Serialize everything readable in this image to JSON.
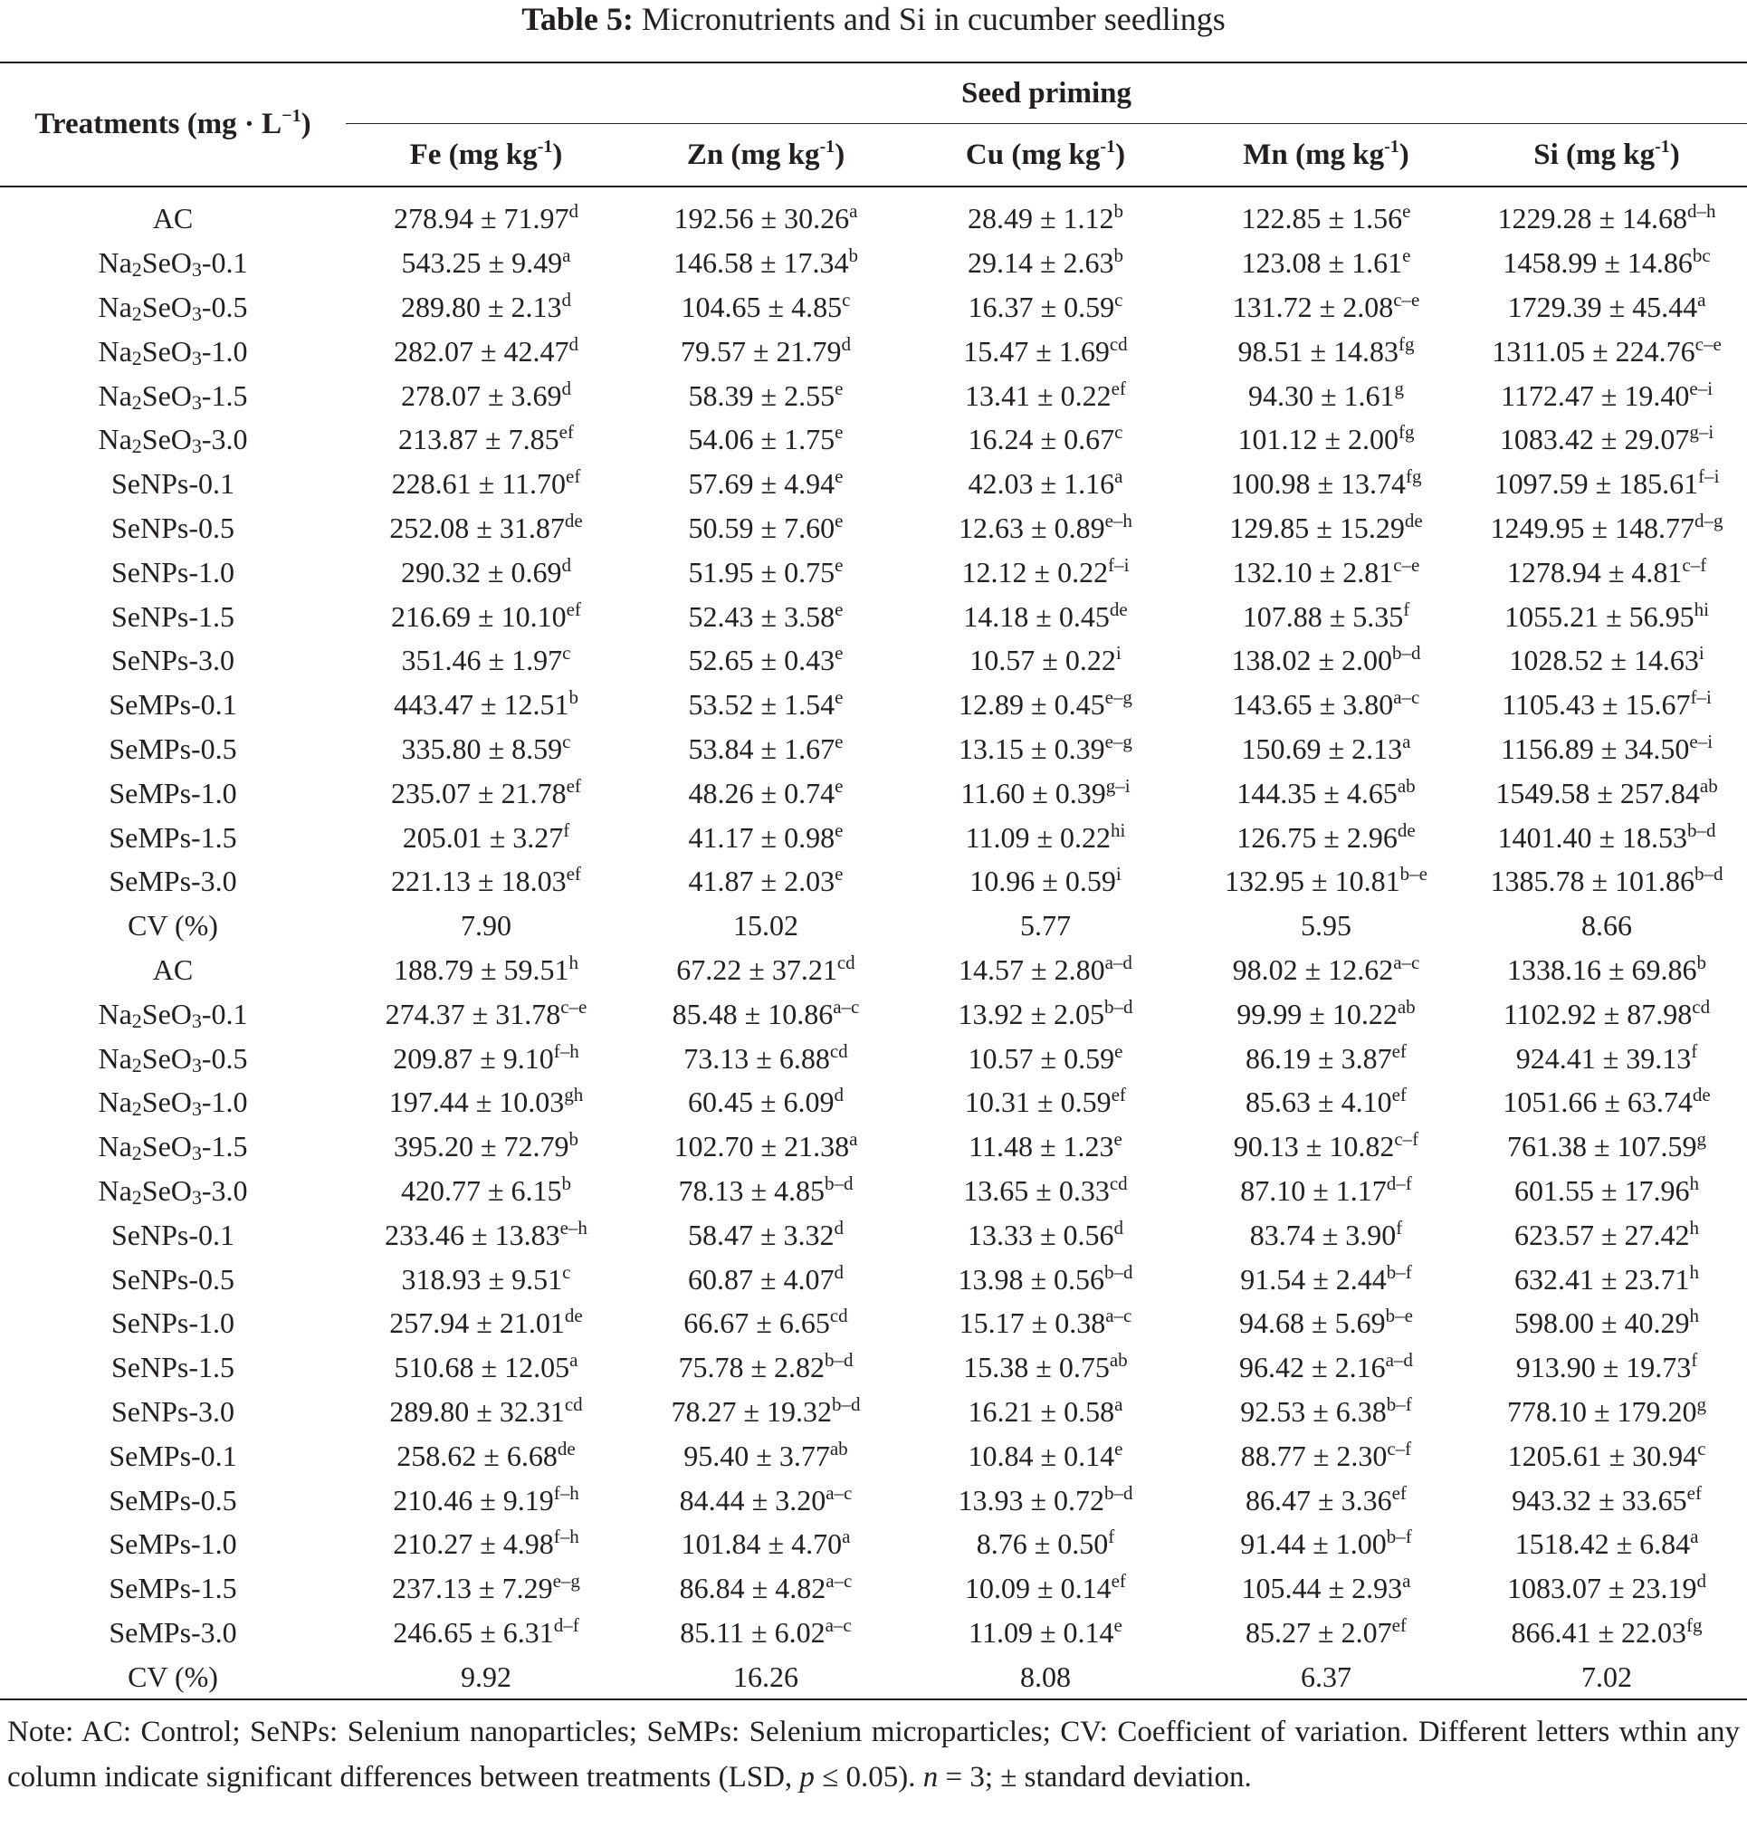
{
  "caption": {
    "label": "Table 5:",
    "text": "Micronutrients and Si in cucumber seedlings"
  },
  "header": {
    "treatments": "Treatments (mg · L",
    "treatments_exp": "−1",
    "treatments_close": ")",
    "group": "Seed priming",
    "columns": [
      {
        "name": "Fe (mg kg",
        "exp": "-1",
        "close": ")"
      },
      {
        "name": "Zn (mg kg",
        "exp": "-1",
        "close": ")"
      },
      {
        "name": "Cu (mg kg",
        "exp": "-1",
        "close": ")"
      },
      {
        "name": "Mn (mg kg",
        "exp": "-1",
        "close": ")"
      },
      {
        "name": "Si (mg kg",
        "exp": "-1",
        "close": ")"
      }
    ]
  },
  "rows": [
    {
      "t": "AC",
      "c": [
        [
          "278.94 ± 71.97",
          "d"
        ],
        [
          "192.56 ± 30.26",
          "a"
        ],
        [
          "28.49 ± 1.12",
          "b"
        ],
        [
          "122.85 ± 1.56",
          "e"
        ],
        [
          "1229.28 ± 14.68",
          "d–h"
        ]
      ]
    },
    {
      "t": "Na2SeO3-0.1",
      "c": [
        [
          "543.25 ± 9.49",
          "a"
        ],
        [
          "146.58 ± 17.34",
          "b"
        ],
        [
          "29.14 ± 2.63",
          "b"
        ],
        [
          "123.08 ± 1.61",
          "e"
        ],
        [
          "1458.99 ± 14.86",
          "bc"
        ]
      ]
    },
    {
      "t": "Na2SeO3-0.5",
      "c": [
        [
          "289.80 ± 2.13",
          "d"
        ],
        [
          "104.65 ± 4.85",
          "c"
        ],
        [
          "16.37 ± 0.59",
          "c"
        ],
        [
          "131.72 ± 2.08",
          "c–e"
        ],
        [
          "1729.39 ± 45.44",
          "a"
        ]
      ]
    },
    {
      "t": "Na2SeO3-1.0",
      "c": [
        [
          "282.07 ± 42.47",
          "d"
        ],
        [
          "79.57 ± 21.79",
          "d"
        ],
        [
          "15.47 ± 1.69",
          "cd"
        ],
        [
          "98.51 ± 14.83",
          "fg"
        ],
        [
          "1311.05 ± 224.76",
          "c–e"
        ]
      ]
    },
    {
      "t": "Na2SeO3-1.5",
      "c": [
        [
          "278.07 ± 3.69",
          "d"
        ],
        [
          "58.39 ± 2.55",
          "e"
        ],
        [
          "13.41 ± 0.22",
          "ef"
        ],
        [
          "94.30 ± 1.61",
          "g"
        ],
        [
          "1172.47 ± 19.40",
          "e–i"
        ]
      ]
    },
    {
      "t": "Na2SeO3-3.0",
      "c": [
        [
          "213.87 ± 7.85",
          "ef"
        ],
        [
          "54.06 ± 1.75",
          "e"
        ],
        [
          "16.24 ± 0.67",
          "c"
        ],
        [
          "101.12 ± 2.00",
          "fg"
        ],
        [
          "1083.42 ± 29.07",
          "g–i"
        ]
      ]
    },
    {
      "t": "SeNPs-0.1",
      "c": [
        [
          "228.61 ± 11.70",
          "ef"
        ],
        [
          "57.69 ± 4.94",
          "e"
        ],
        [
          "42.03 ± 1.16",
          "a"
        ],
        [
          "100.98 ± 13.74",
          "fg"
        ],
        [
          "1097.59 ± 185.61",
          "f–i"
        ]
      ]
    },
    {
      "t": "SeNPs-0.5",
      "c": [
        [
          "252.08 ± 31.87",
          "de"
        ],
        [
          "50.59 ± 7.60",
          "e"
        ],
        [
          "12.63 ± 0.89",
          "e–h"
        ],
        [
          "129.85 ± 15.29",
          "de"
        ],
        [
          "1249.95 ± 148.77",
          "d–g"
        ]
      ]
    },
    {
      "t": "SeNPs-1.0",
      "c": [
        [
          "290.32 ± 0.69",
          "d"
        ],
        [
          "51.95 ± 0.75",
          "e"
        ],
        [
          "12.12 ± 0.22",
          "f–i"
        ],
        [
          "132.10 ± 2.81",
          "c–e"
        ],
        [
          "1278.94 ± 4.81",
          "c–f"
        ]
      ]
    },
    {
      "t": "SeNPs-1.5",
      "c": [
        [
          "216.69 ± 10.10",
          "ef"
        ],
        [
          "52.43 ± 3.58",
          "e"
        ],
        [
          "14.18 ± 0.45",
          "de"
        ],
        [
          "107.88 ± 5.35",
          "f"
        ],
        [
          "1055.21 ± 56.95",
          "hi"
        ]
      ]
    },
    {
      "t": "SeNPs-3.0",
      "c": [
        [
          "351.46 ± 1.97",
          "c"
        ],
        [
          "52.65 ± 0.43",
          "e"
        ],
        [
          "10.57 ± 0.22",
          "i"
        ],
        [
          "138.02 ± 2.00",
          "b–d"
        ],
        [
          "1028.52 ± 14.63",
          "i"
        ]
      ]
    },
    {
      "t": "SeMPs-0.1",
      "c": [
        [
          "443.47 ± 12.51",
          "b"
        ],
        [
          "53.52 ± 1.54",
          "e"
        ],
        [
          "12.89 ± 0.45",
          "e–g"
        ],
        [
          "143.65 ± 3.80",
          "a–c"
        ],
        [
          "1105.43 ± 15.67",
          "f–i"
        ]
      ]
    },
    {
      "t": "SeMPs-0.5",
      "c": [
        [
          "335.80 ± 8.59",
          "c"
        ],
        [
          "53.84 ± 1.67",
          "e"
        ],
        [
          "13.15 ± 0.39",
          "e–g"
        ],
        [
          "150.69 ± 2.13",
          "a"
        ],
        [
          "1156.89 ± 34.50",
          "e–i"
        ]
      ]
    },
    {
      "t": "SeMPs-1.0",
      "c": [
        [
          "235.07 ± 21.78",
          "ef"
        ],
        [
          "48.26 ± 0.74",
          "e"
        ],
        [
          "11.60 ± 0.39",
          "g–i"
        ],
        [
          "144.35 ± 4.65",
          "ab"
        ],
        [
          "1549.58 ± 257.84",
          "ab"
        ]
      ]
    },
    {
      "t": "SeMPs-1.5",
      "c": [
        [
          "205.01 ± 3.27",
          "f"
        ],
        [
          "41.17 ± 0.98",
          "e"
        ],
        [
          "11.09 ± 0.22",
          "hi"
        ],
        [
          "126.75 ± 2.96",
          "de"
        ],
        [
          "1401.40 ± 18.53",
          "b–d"
        ]
      ]
    },
    {
      "t": "SeMPs-3.0",
      "c": [
        [
          "221.13 ± 18.03",
          "ef"
        ],
        [
          "41.87 ± 2.03",
          "e"
        ],
        [
          "10.96 ± 0.59",
          "i"
        ],
        [
          "132.95 ± 10.81",
          "b–e"
        ],
        [
          "1385.78 ± 101.86",
          "b–d"
        ]
      ]
    },
    {
      "t": "CV (%)",
      "c": [
        [
          "7.90",
          ""
        ],
        [
          "15.02",
          ""
        ],
        [
          "5.77",
          ""
        ],
        [
          "5.95",
          ""
        ],
        [
          "8.66",
          ""
        ]
      ]
    },
    {
      "t": "AC",
      "c": [
        [
          "188.79 ± 59.51",
          "h"
        ],
        [
          "67.22 ± 37.21",
          "cd"
        ],
        [
          "14.57 ± 2.80",
          "a–d"
        ],
        [
          "98.02 ± 12.62",
          "a–c"
        ],
        [
          "1338.16 ± 69.86",
          "b"
        ]
      ]
    },
    {
      "t": "Na2SeO3-0.1",
      "c": [
        [
          "274.37 ± 31.78",
          "c–e"
        ],
        [
          "85.48 ± 10.86",
          "a–c"
        ],
        [
          "13.92 ± 2.05",
          "b–d"
        ],
        [
          "99.99 ± 10.22",
          "ab"
        ],
        [
          "1102.92 ± 87.98",
          "cd"
        ]
      ]
    },
    {
      "t": "Na2SeO3-0.5",
      "c": [
        [
          "209.87 ± 9.10",
          "f–h"
        ],
        [
          "73.13 ± 6.88",
          "cd"
        ],
        [
          "10.57 ± 0.59",
          "e"
        ],
        [
          "86.19 ± 3.87",
          "ef"
        ],
        [
          "924.41 ± 39.13",
          "f"
        ]
      ]
    },
    {
      "t": "Na2SeO3-1.0",
      "c": [
        [
          "197.44 ± 10.03",
          "gh"
        ],
        [
          "60.45 ± 6.09",
          "d"
        ],
        [
          "10.31 ± 0.59",
          "ef"
        ],
        [
          "85.63 ± 4.10",
          "ef"
        ],
        [
          "1051.66 ± 63.74",
          "de"
        ]
      ]
    },
    {
      "t": "Na2SeO3-1.5",
      "c": [
        [
          "395.20 ± 72.79",
          "b"
        ],
        [
          "102.70 ± 21.38",
          "a"
        ],
        [
          "11.48 ± 1.23",
          "e"
        ],
        [
          "90.13 ± 10.82",
          "c–f"
        ],
        [
          "761.38 ± 107.59",
          "g"
        ]
      ]
    },
    {
      "t": "Na2SeO3-3.0",
      "c": [
        [
          "420.77 ± 6.15",
          "b"
        ],
        [
          "78.13 ± 4.85",
          "b–d"
        ],
        [
          "13.65 ± 0.33",
          "cd"
        ],
        [
          "87.10 ± 1.17",
          "d–f"
        ],
        [
          "601.55 ± 17.96",
          "h"
        ]
      ]
    },
    {
      "t": "SeNPs-0.1",
      "c": [
        [
          "233.46 ± 13.83",
          "e–h"
        ],
        [
          "58.47 ± 3.32",
          "d"
        ],
        [
          "13.33 ± 0.56",
          "d"
        ],
        [
          "83.74 ± 3.90",
          "f"
        ],
        [
          "623.57 ± 27.42",
          "h"
        ]
      ]
    },
    {
      "t": "SeNPs-0.5",
      "c": [
        [
          "318.93 ± 9.51",
          "c"
        ],
        [
          "60.87 ± 4.07",
          "d"
        ],
        [
          "13.98 ± 0.56",
          "b–d"
        ],
        [
          "91.54 ± 2.44",
          "b–f"
        ],
        [
          "632.41 ± 23.71",
          "h"
        ]
      ]
    },
    {
      "t": "SeNPs-1.0",
      "c": [
        [
          "257.94 ± 21.01",
          "de"
        ],
        [
          "66.67 ± 6.65",
          "cd"
        ],
        [
          "15.17 ± 0.38",
          "a–c"
        ],
        [
          "94.68 ± 5.69",
          "b–e"
        ],
        [
          "598.00 ± 40.29",
          "h"
        ]
      ]
    },
    {
      "t": "SeNPs-1.5",
      "c": [
        [
          "510.68 ± 12.05",
          "a"
        ],
        [
          "75.78 ± 2.82",
          "b–d"
        ],
        [
          "15.38 ± 0.75",
          "ab"
        ],
        [
          "96.42 ± 2.16",
          "a–d"
        ],
        [
          "913.90 ± 19.73",
          "f"
        ]
      ]
    },
    {
      "t": "SeNPs-3.0",
      "c": [
        [
          "289.80 ± 32.31",
          "cd"
        ],
        [
          "78.27 ± 19.32",
          "b–d"
        ],
        [
          "16.21 ± 0.58",
          "a"
        ],
        [
          "92.53 ± 6.38",
          "b–f"
        ],
        [
          "778.10 ± 179.20",
          "g"
        ]
      ]
    },
    {
      "t": "SeMPs-0.1",
      "c": [
        [
          "258.62 ± 6.68",
          "de"
        ],
        [
          "95.40 ± 3.77",
          "ab"
        ],
        [
          "10.84 ± 0.14",
          "e"
        ],
        [
          "88.77 ± 2.30",
          "c–f"
        ],
        [
          "1205.61 ± 30.94",
          "c"
        ]
      ]
    },
    {
      "t": "SeMPs-0.5",
      "c": [
        [
          "210.46 ± 9.19",
          "f–h"
        ],
        [
          "84.44 ± 3.20",
          "a–c"
        ],
        [
          "13.93 ± 0.72",
          "b–d"
        ],
        [
          "86.47 ± 3.36",
          "ef"
        ],
        [
          "943.32 ± 33.65",
          "ef"
        ]
      ]
    },
    {
      "t": "SeMPs-1.0",
      "c": [
        [
          "210.27 ± 4.98",
          "f–h"
        ],
        [
          "101.84 ± 4.70",
          "a"
        ],
        [
          "8.76 ± 0.50",
          "f"
        ],
        [
          "91.44 ± 1.00",
          "b–f"
        ],
        [
          "1518.42 ± 6.84",
          "a"
        ]
      ]
    },
    {
      "t": "SeMPs-1.5",
      "c": [
        [
          "237.13 ± 7.29",
          "e–g"
        ],
        [
          "86.84 ± 4.82",
          "a–c"
        ],
        [
          "10.09 ± 0.14",
          "ef"
        ],
        [
          "105.44 ± 2.93",
          "a"
        ],
        [
          "1083.07 ± 23.19",
          "d"
        ]
      ]
    },
    {
      "t": "SeMPs-3.0",
      "c": [
        [
          "246.65 ± 6.31",
          "d–f"
        ],
        [
          "85.11 ± 6.02",
          "a–c"
        ],
        [
          "11.09 ± 0.14",
          "e"
        ],
        [
          "85.27 ± 2.07",
          "ef"
        ],
        [
          "866.41 ± 22.03",
          "fg"
        ]
      ]
    },
    {
      "t": "CV (%)",
      "c": [
        [
          "9.92",
          ""
        ],
        [
          "16.26",
          ""
        ],
        [
          "8.08",
          ""
        ],
        [
          "6.37",
          ""
        ],
        [
          "7.02",
          ""
        ]
      ]
    }
  ],
  "note": {
    "line1": "Note: AC: Control; SeNPs: Selenium nanoparticles; SeMPs: Selenium microparticles; CV: Coefficient of variation. Different letters wthin any column indicate significant differences between treatments (LSD, ",
    "p": "p",
    "mid": " ≤ 0.05). ",
    "n": "n",
    "end": " = 3; ± standard deviation."
  }
}
